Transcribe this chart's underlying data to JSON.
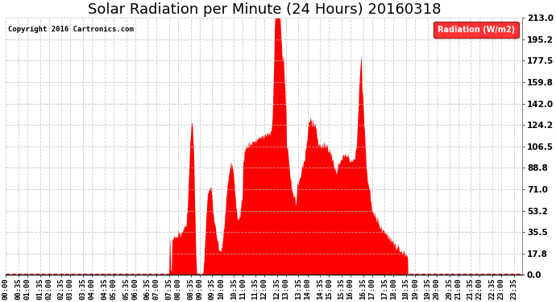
{
  "title": "Solar Radiation per Minute (24 Hours) 20160318",
  "copyright_text": "Copyright 2016 Cartronics.com",
  "legend_label": "Radiation (W/m2)",
  "ylim": [
    0.0,
    213.0
  ],
  "yticks": [
    0.0,
    17.8,
    35.5,
    53.2,
    71.0,
    88.8,
    106.5,
    124.2,
    142.0,
    159.8,
    177.5,
    195.2,
    213.0
  ],
  "fill_color": "#FF0000",
  "background_color": "#FFFFFF",
  "grid_color": "#BBBBBB",
  "title_fontsize": 13,
  "tick_fontsize": 6.5,
  "legend_bg_color": "#FF0000",
  "legend_text_color": "#FFFFFF",
  "sunrise_minute": 455,
  "sunset_minute": 1120
}
